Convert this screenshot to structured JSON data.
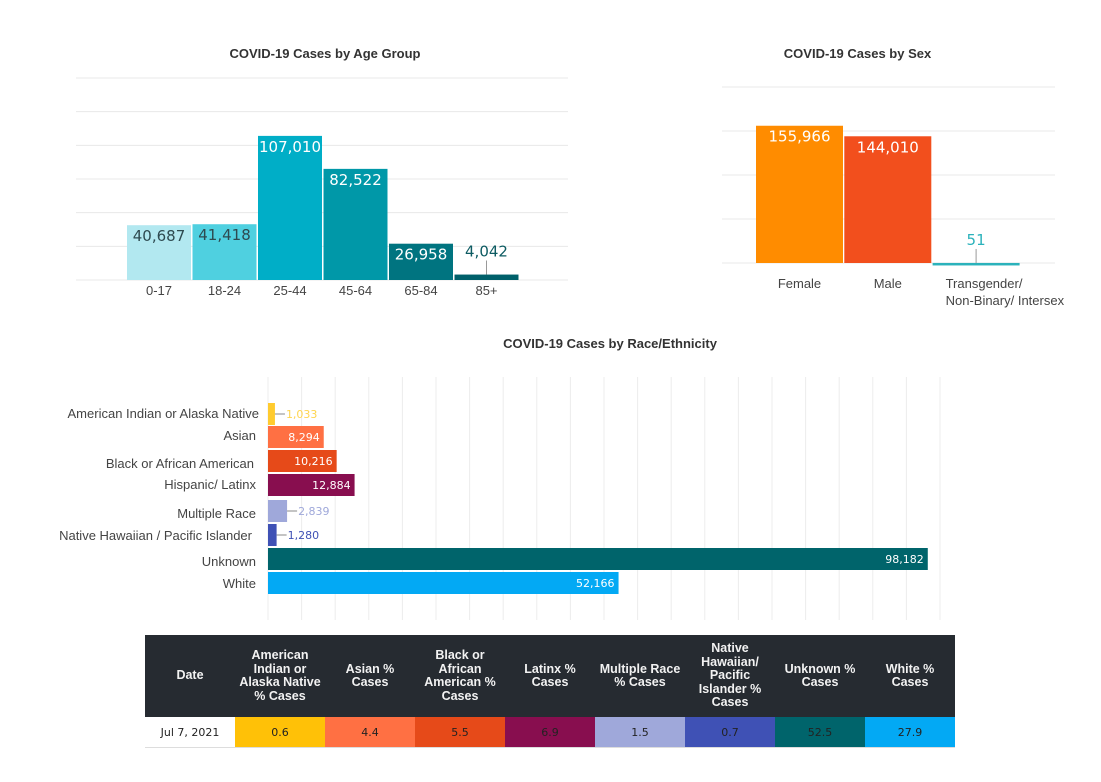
{
  "chart_data": [
    {
      "type": "bar",
      "id": "age",
      "title": "COVID-19 Cases by Age Group",
      "xlabel": "",
      "ylabel": "",
      "categories": [
        "0-17",
        "18-24",
        "25-44",
        "45-64",
        "65-84",
        "85+"
      ],
      "values": [
        40687,
        41418,
        107010,
        82522,
        26958,
        4042
      ],
      "value_labels": [
        "40,687",
        "41,418",
        "107,010",
        "82,522",
        "26,958",
        "4,042"
      ],
      "colors": [
        "#b2e8f0",
        "#4fd0e0",
        "#00aec7",
        "#0098a8",
        "#007480",
        "#00606a"
      ],
      "label_colors": [
        "#2e4a50",
        "#2e4a50",
        "#ffffff",
        "#ffffff",
        "#ffffff",
        "#0d5b62"
      ],
      "ylim": [
        0,
        150000
      ],
      "grid": true,
      "grid_step": 25000,
      "y_tick_labels_visible": false
    },
    {
      "type": "bar",
      "id": "sex",
      "title": "COVID-19 Cases by Sex",
      "xlabel": "",
      "ylabel": "",
      "categories": [
        "Female",
        "Male",
        "Transgender/ Non-Binary/ Intersex"
      ],
      "category_lines": [
        [
          "Female"
        ],
        [
          "Male"
        ],
        [
          "Transgender/",
          "Non-Binary/ Intersex"
        ]
      ],
      "values": [
        155966,
        144010,
        51
      ],
      "value_labels": [
        "155,966",
        "144,010",
        "51"
      ],
      "colors": [
        "#ff8c00",
        "#f24f1d",
        "#2bb2bb"
      ],
      "label_colors": [
        "#ffffff",
        "#ffffff",
        "#2bb2bb"
      ],
      "ylim": [
        0,
        200000
      ],
      "grid": true,
      "grid_step": 50000,
      "y_tick_labels_visible": false
    },
    {
      "type": "bar",
      "orientation": "horizontal",
      "id": "race",
      "title": "COVID-19 Cases by Race/Ethnicity",
      "xlabel": "",
      "ylabel": "",
      "categories": [
        "American Indian or Alaska Native",
        "Asian",
        "Black or African American",
        "Hispanic/ Latinx",
        "Multiple Race",
        "Native Hawaiian / Pacific Islander",
        "Unknown",
        "White"
      ],
      "values": [
        1033,
        8294,
        10216,
        12884,
        2839,
        1280,
        98182,
        52166
      ],
      "value_labels": [
        "1,033",
        "8,294",
        "10,216",
        "12,884",
        "2,839",
        "1,280",
        "98,182",
        "52,166"
      ],
      "colors": [
        "#ffcb2f",
        "#ff7043",
        "#e64a19",
        "#880e4f",
        "#9fa8da",
        "#3f51b5",
        "#00646b",
        "#03a9f4"
      ],
      "label_colors": [
        "#ffd54f",
        "#ffffff",
        "#ffffff",
        "#ffffff",
        "#9fa8da",
        "#3f51b5",
        "#ffffff",
        "#ffffff"
      ],
      "xlim": [
        0,
        100000
      ],
      "grid": true,
      "grid_step": 5000,
      "x_tick_labels_visible": false
    }
  ],
  "table": {
    "headers": [
      "Date",
      "American Indian or Alaska Native % Cases",
      "Asian % Cases",
      "Black or African American % Cases",
      "Latinx % Cases",
      "Multiple Race % Cases",
      "Native Hawaiian/ Pacific Islander % Cases",
      "Unknown % Cases",
      "White % Cases"
    ],
    "rows": [
      [
        "Jul 7, 2021",
        "0.6",
        "4.4",
        "5.5",
        "6.9",
        "1.5",
        "0.7",
        "52.5",
        "27.9"
      ]
    ],
    "cell_colors": [
      "#ffffff",
      "#ffc107",
      "#ff7043",
      "#e64a19",
      "#880e4f",
      "#9fa8da",
      "#3f51b5",
      "#00646b",
      "#03a9f4"
    ]
  }
}
